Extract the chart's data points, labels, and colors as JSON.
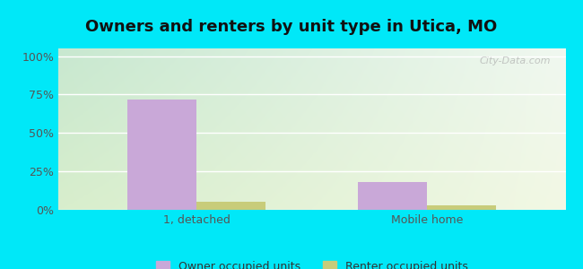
{
  "title": "Owners and renters by unit type in Utica, MO",
  "categories": [
    "1, detached",
    "Mobile home"
  ],
  "owner_values": [
    72,
    18
  ],
  "renter_values": [
    5,
    3
  ],
  "owner_color": "#c9a8d8",
  "renter_color": "#c8cc7a",
  "background_outer": "#00e8f8",
  "yticks": [
    0,
    25,
    50,
    75,
    100
  ],
  "ytick_labels": [
    "0%",
    "25%",
    "50%",
    "75%",
    "100%"
  ],
  "ylim": [
    0,
    105
  ],
  "bar_width": 0.3,
  "legend_labels": [
    "Owner occupied units",
    "Renter occupied units"
  ],
  "watermark": "City-Data.com",
  "title_fontsize": 13,
  "tick_fontsize": 9,
  "legend_fontsize": 9,
  "grad_top_left": "#d4eedd",
  "grad_bottom_right": "#f4f8e8"
}
